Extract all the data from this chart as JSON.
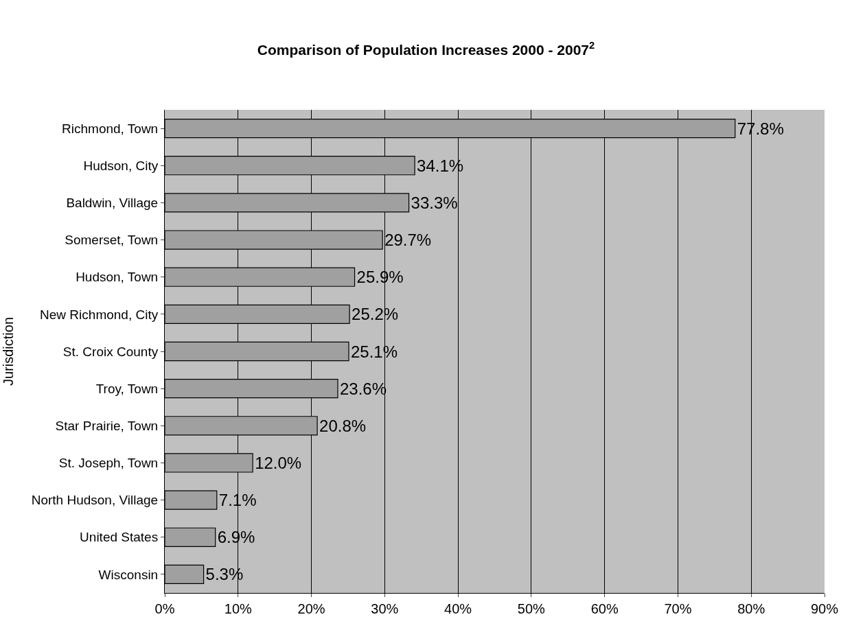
{
  "chart_data": {
    "type": "bar",
    "orientation": "horizontal",
    "title": "Comparison of Population Increases 2000 - 2007$^{2}$",
    "ylabel": "Jurisdiction",
    "categories": [
      "Richmond, Town",
      "Hudson, City",
      "Baldwin, Village",
      "Somerset, Town",
      "Hudson, Town",
      "New Richmond, City",
      "St. Croix County",
      "Troy, Town",
      "Star Prairie, Town",
      "St. Joseph, Town",
      "North Hudson, Village",
      "United States",
      "Wisconsin"
    ],
    "values": [
      77.8,
      34.1,
      33.3,
      29.7,
      25.9,
      25.2,
      25.1,
      23.6,
      20.8,
      12.0,
      7.1,
      6.9,
      5.3
    ],
    "value_labels": [
      "77.8%",
      "34.1%",
      "33.3%",
      "29.7%",
      "25.9%",
      "25.2%",
      "25.1%",
      "23.6%",
      "20.8%",
      "12.0%",
      "7.1%",
      "6.9%",
      "5.3%"
    ],
    "color": "#a0a0a0",
    "xlim": [
      0,
      90
    ],
    "xticks": [
      {
        "value": 0,
        "label": "0%"
      },
      {
        "value": 10,
        "label": "10%"
      },
      {
        "value": 20,
        "label": "20%"
      },
      {
        "value": 30,
        "label": "30%"
      },
      {
        "value": 40,
        "label": "40%"
      },
      {
        "value": 50,
        "label": "50%"
      },
      {
        "value": 60,
        "label": "60%"
      },
      {
        "value": 70,
        "label": "70%"
      },
      {
        "value": 80,
        "label": "80%"
      },
      {
        "value": 90,
        "label": "90%"
      }
    ],
    "grid": "x",
    "legend": false
  }
}
